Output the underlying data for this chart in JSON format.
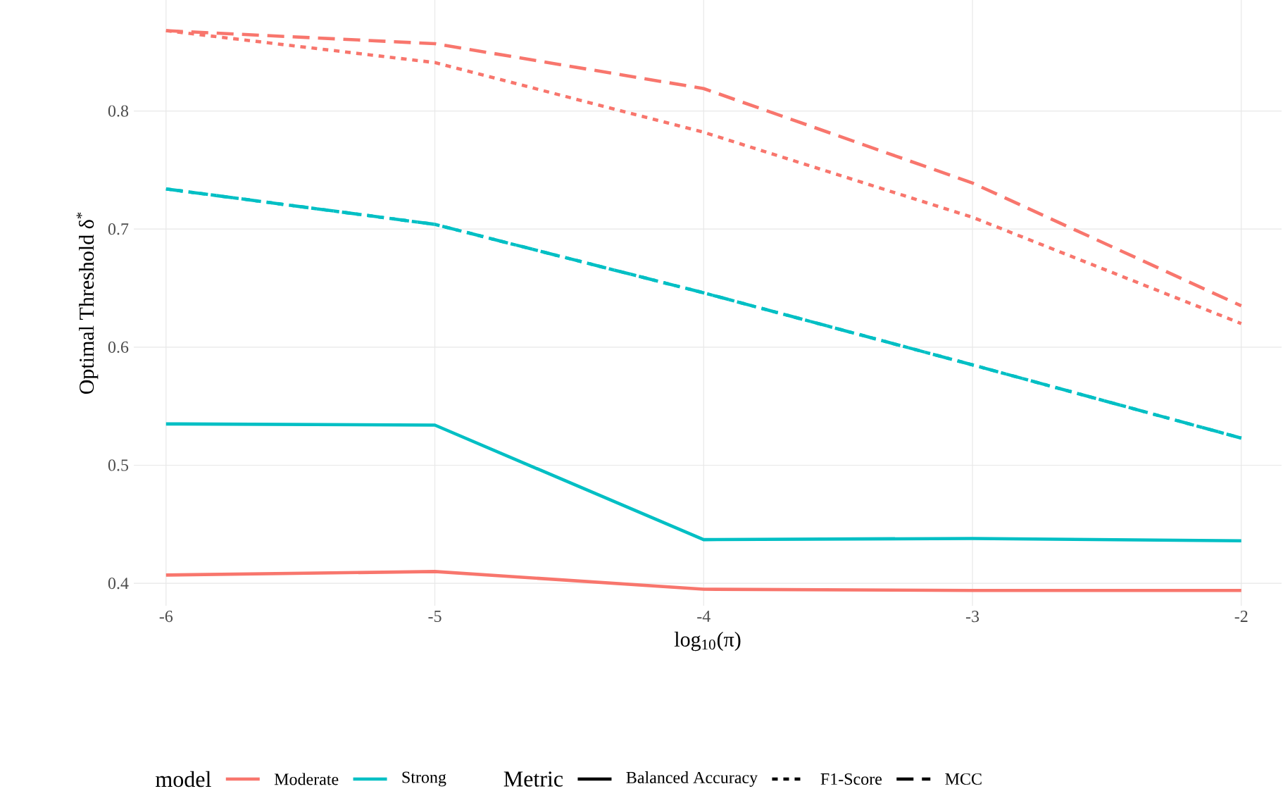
{
  "chart_data": {
    "type": "line",
    "xlabel": "log$_{10}$(π)",
    "ylabel": "Optimal Threshold δ$^{*}$",
    "legend_title": [
      "model",
      "Metric"
    ],
    "x": [
      -6,
      -5,
      -4,
      -3,
      -2
    ],
    "xlim": [
      -6.12,
      -1.85
    ],
    "ylim": [
      0.381,
      0.894
    ],
    "xticks": [
      -6,
      -5,
      -4,
      -3,
      -2
    ],
    "yticks": [
      0.4,
      0.5,
      0.6,
      0.7,
      0.8
    ],
    "grid": true,
    "legend": "bottom",
    "series": [
      {
        "color": "#f8766d",
        "line_style": "solid",
        "values": [
          0.407,
          0.41,
          0.395,
          0.394,
          0.394
        ]
      },
      {
        "color": "#00bfc4",
        "line_style": "solid",
        "values": [
          0.535,
          0.534,
          0.437,
          0.438,
          0.436
        ]
      },
      {
        "color": "#f8766d",
        "line_style": "dotted",
        "values": [
          0.868,
          0.841,
          0.782,
          0.71,
          0.62
        ]
      },
      {
        "color": "#00bfc4",
        "line_style": "dotted",
        "values": [
          0.734,
          0.704,
          0.646,
          0.585,
          0.523
        ]
      },
      {
        "color": "#f8766d",
        "line_style": "dashed",
        "values": [
          0.868,
          0.857,
          0.819,
          0.739,
          0.635
        ]
      },
      {
        "color": "#00bfc4",
        "line_style": "dashed",
        "values": [
          0.734,
          0.704,
          0.646,
          0.585,
          0.523
        ]
      },
      {
        "name": "Moderate",
        "color": "#f8766d",
        "values": [
          null,
          null,
          null,
          null,
          null
        ]
      },
      {
        "name": "Strong",
        "color": "#00bfc4",
        "values": [
          null,
          null,
          null,
          null,
          null
        ]
      },
      {
        "name": "Balanced Accuracy",
        "color": "#000000",
        "line_style": "solid",
        "values": [
          null,
          null,
          null,
          null,
          null
        ]
      },
      {
        "name": "F1-Score",
        "color": "#000000",
        "line_style": "dotted",
        "values": [
          null,
          null,
          null,
          null,
          null
        ]
      },
      {
        "name": "MCC",
        "color": "#000000",
        "line_style": "dashed",
        "values": [
          null,
          null,
          null,
          null,
          null
        ]
      }
    ]
  }
}
